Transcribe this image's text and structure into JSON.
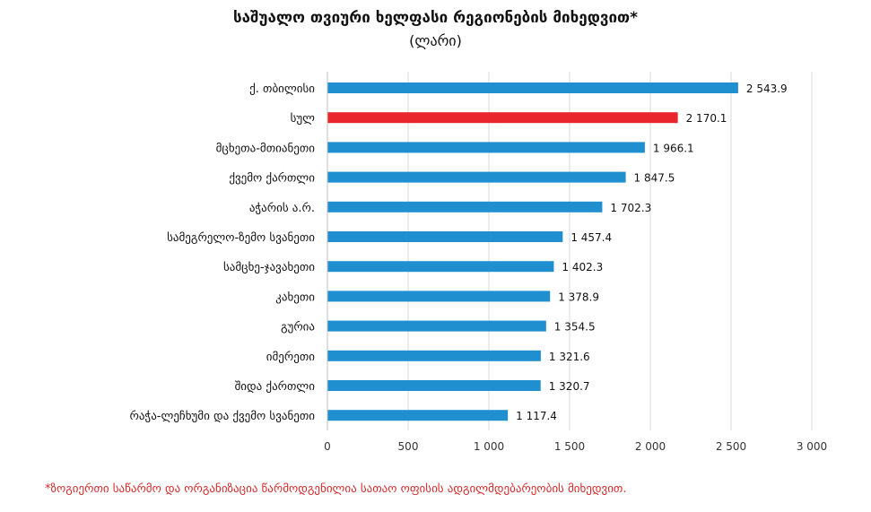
{
  "chart_data": {
    "type": "bar",
    "orientation": "horizontal",
    "title": "საშუალო თვიური ხელფასი რეგიონების მიხედვით*",
    "subtitle": "(ლარი)",
    "categories": [
      "ქ. თბილისი",
      "სულ",
      "მცხეთა-მთიანეთი",
      "ქვემო ქართლი",
      "აჭარის ა.რ.",
      "სამეგრელო-ზემო სვანეთი",
      "სამცხე-ჯავახეთი",
      "კახეთი",
      "გურია",
      "იმერეთი",
      "შიდა ქართლი",
      "რაჭა-ლეჩხუმი და ქვემო სვანეთი"
    ],
    "values": [
      2543.9,
      2170.1,
      1966.1,
      1847.5,
      1702.3,
      1457.4,
      1402.3,
      1378.9,
      1354.5,
      1321.6,
      1320.7,
      1117.4
    ],
    "value_labels": [
      "2 543.9",
      "2 170.1",
      "1 966.1",
      "1 847.5",
      "1 702.3",
      "1 457.4",
      "1 402.3",
      "1 378.9",
      "1 354.5",
      "1 321.6",
      "1 320.7",
      "1 117.4"
    ],
    "highlight_index": 1,
    "colors": {
      "bar": "#1f8fd0",
      "highlight": "#e8262b",
      "grid": "#d9d9d9"
    },
    "xlim": [
      0,
      3000
    ],
    "xticks": [
      0,
      500,
      1000,
      1500,
      2000,
      2500,
      3000
    ],
    "xtick_labels": [
      "0",
      "500",
      "1 000",
      "1 500",
      "2 000",
      "2 500",
      "3 000"
    ],
    "grid": true,
    "xlabel": "",
    "ylabel": ""
  },
  "footnote": "*ზოგიერთი საწარმო და ორგანიზაცია წარმოდგენილია სათაო ოფისის ადგილმდებარეობის მიხედვით."
}
